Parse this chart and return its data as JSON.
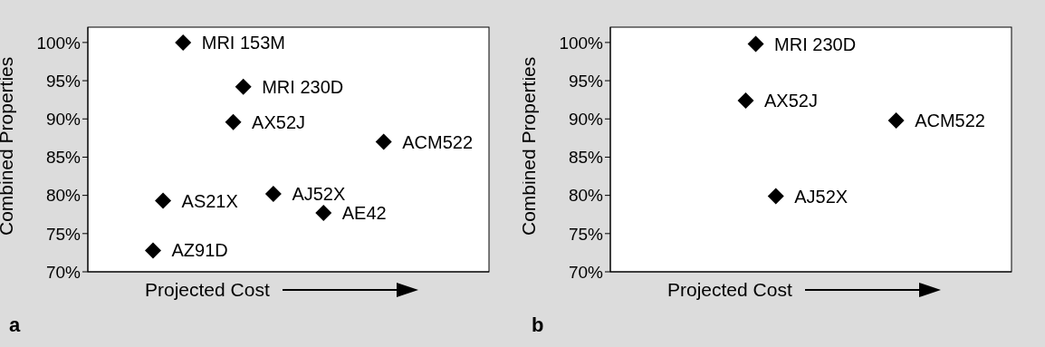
{
  "chart_data": [
    {
      "type": "scatter",
      "xlabel": "Projected Cost",
      "ylabel": "Combined Properties",
      "marker": "diamond",
      "tick_labels": "y",
      "legend": false,
      "categories": [
        null,
        null,
        null,
        null,
        null,
        null,
        null,
        null,
        null,
        null,
        null,
        null,
        null,
        null,
        null,
        null,
        null,
        null,
        null,
        null,
        null,
        null,
        null,
        null,
        null,
        null,
        null,
        null,
        null,
        null,
        null,
        null,
        null,
        null,
        null,
        null,
        null,
        null,
        null,
        null
      ],
      "ylim": [
        70,
        102
      ],
      "yticks": [
        {
          "value": 70,
          "label": "70%"
        },
        {
          "value": 75,
          "label": "75%"
        },
        {
          "value": 80,
          "label": "80%"
        },
        {
          "value": 85,
          "label": "85%"
        },
        {
          "value": 90,
          "label": "90%"
        },
        {
          "value": 95,
          "label": "95%"
        },
        {
          "value": 100,
          "label": "100%"
        }
      ],
      "series": [
        {
          "name": "MRI 153M",
          "color": "#000000",
          "values": [
            null,
            null,
            null,
            null,
            null,
            null,
            null,
            null,
            null,
            100,
            null,
            null,
            null,
            null,
            null,
            null,
            null,
            null,
            null,
            null,
            null,
            null,
            null,
            null,
            null,
            null,
            null,
            null,
            null,
            null,
            null,
            null,
            null,
            null,
            null,
            null,
            null,
            null,
            null,
            null
          ]
        },
        {
          "name": "MRI 230D",
          "color": "#000000",
          "values": [
            null,
            null,
            null,
            null,
            null,
            null,
            null,
            null,
            null,
            null,
            null,
            null,
            null,
            null,
            null,
            94.2,
            null,
            null,
            null,
            null,
            null,
            null,
            null,
            null,
            null,
            null,
            null,
            null,
            null,
            null,
            null,
            null,
            null,
            null,
            null,
            null,
            null,
            null,
            null,
            null
          ]
        },
        {
          "name": "AX52J",
          "color": "#000000",
          "values": [
            null,
            null,
            null,
            null,
            null,
            null,
            null,
            null,
            null,
            null,
            null,
            null,
            null,
            null,
            89.6,
            null,
            null,
            null,
            null,
            null,
            null,
            null,
            null,
            null,
            null,
            null,
            null,
            null,
            null,
            null,
            null,
            null,
            null,
            null,
            null,
            null,
            null,
            null,
            null,
            null
          ]
        },
        {
          "name": "ACM522",
          "color": "#000000",
          "values": [
            null,
            null,
            null,
            null,
            null,
            null,
            null,
            null,
            null,
            null,
            null,
            null,
            null,
            null,
            null,
            null,
            null,
            null,
            null,
            null,
            null,
            null,
            null,
            null,
            null,
            null,
            null,
            null,
            null,
            87,
            null,
            null,
            null,
            null,
            null,
            null,
            null,
            null,
            null,
            null
          ]
        },
        {
          "name": "AS21X",
          "color": "#000000",
          "values": [
            null,
            null,
            null,
            null,
            null,
            null,
            null,
            79.3,
            null,
            null,
            null,
            null,
            null,
            null,
            null,
            null,
            null,
            null,
            null,
            null,
            null,
            null,
            null,
            null,
            null,
            null,
            null,
            null,
            null,
            null,
            null,
            null,
            null,
            null,
            null,
            null,
            null,
            null,
            null,
            null
          ]
        },
        {
          "name": "AJ52X",
          "color": "#000000",
          "values": [
            null,
            null,
            null,
            null,
            null,
            null,
            null,
            null,
            null,
            null,
            null,
            null,
            null,
            null,
            null,
            null,
            null,
            null,
            80.2,
            null,
            null,
            null,
            null,
            null,
            null,
            null,
            null,
            null,
            null,
            null,
            null,
            null,
            null,
            null,
            null,
            null,
            null,
            null,
            null,
            null
          ]
        },
        {
          "name": "AE42",
          "color": "#000000",
          "values": [
            null,
            null,
            null,
            null,
            null,
            null,
            null,
            null,
            null,
            null,
            null,
            null,
            null,
            null,
            null,
            null,
            null,
            null,
            null,
            null,
            null,
            null,
            null,
            77.7,
            null,
            null,
            null,
            null,
            null,
            null,
            null,
            null,
            null,
            null,
            null,
            null,
            null,
            null,
            null,
            null
          ]
        },
        {
          "name": "AZ91D",
          "color": "#000000",
          "values": [
            null,
            null,
            null,
            null,
            null,
            null,
            72.8,
            null,
            null,
            null,
            null,
            null,
            null,
            null,
            null,
            null,
            null,
            null,
            null,
            null,
            null,
            null,
            null,
            null,
            null,
            null,
            null,
            null,
            null,
            null,
            null,
            null,
            null,
            null,
            null,
            null,
            null,
            null,
            null,
            null
          ]
        }
      ],
      "annotations": [
        "a"
      ]
    },
    {
      "type": "scatter",
      "xlabel": "Projected Cost",
      "ylabel": "Combined Properties",
      "marker": "diamond",
      "tick_labels": "y",
      "legend": false,
      "categories": [
        null,
        null,
        null,
        null,
        null,
        null,
        null,
        null,
        null,
        null,
        null,
        null,
        null,
        null,
        null,
        null,
        null,
        null,
        null,
        null,
        null,
        null,
        null,
        null,
        null,
        null,
        null,
        null,
        null,
        null,
        null,
        null,
        null,
        null,
        null,
        null,
        null,
        null,
        null,
        null
      ],
      "ylim": [
        70,
        102
      ],
      "yticks": [
        {
          "value": 70,
          "label": "70%"
        },
        {
          "value": 75,
          "label": "75%"
        },
        {
          "value": 80,
          "label": "80%"
        },
        {
          "value": 85,
          "label": "85%"
        },
        {
          "value": 90,
          "label": "90%"
        },
        {
          "value": 95,
          "label": "95%"
        },
        {
          "value": 100,
          "label": "100%"
        }
      ],
      "series": [
        {
          "name": "MRI 230D",
          "color": "#000000",
          "values": [
            null,
            null,
            null,
            null,
            null,
            null,
            null,
            null,
            null,
            null,
            null,
            null,
            null,
            null,
            99.8,
            null,
            null,
            null,
            null,
            null,
            null,
            null,
            null,
            null,
            null,
            null,
            null,
            null,
            null,
            null,
            null,
            null,
            null,
            null,
            null,
            null,
            null,
            null,
            null,
            null
          ]
        },
        {
          "name": "AX52J",
          "color": "#000000",
          "values": [
            null,
            null,
            null,
            null,
            null,
            null,
            null,
            null,
            null,
            null,
            null,
            null,
            null,
            92.4,
            null,
            null,
            null,
            null,
            null,
            null,
            null,
            null,
            null,
            null,
            null,
            null,
            null,
            null,
            null,
            null,
            null,
            null,
            null,
            null,
            null,
            null,
            null,
            null,
            null,
            null
          ]
        },
        {
          "name": "ACM522",
          "color": "#000000",
          "values": [
            null,
            null,
            null,
            null,
            null,
            null,
            null,
            null,
            null,
            null,
            null,
            null,
            null,
            null,
            null,
            null,
            null,
            null,
            null,
            null,
            null,
            null,
            null,
            null,
            null,
            null,
            null,
            null,
            89.8,
            null,
            null,
            null,
            null,
            null,
            null,
            null,
            null,
            null,
            null,
            null
          ]
        },
        {
          "name": "AJ52X",
          "color": "#000000",
          "values": [
            null,
            null,
            null,
            null,
            null,
            null,
            null,
            null,
            null,
            null,
            null,
            null,
            null,
            null,
            null,
            null,
            79.9,
            null,
            null,
            null,
            null,
            null,
            null,
            null,
            null,
            null,
            null,
            null,
            null,
            null,
            null,
            null,
            null,
            null,
            null,
            null,
            null,
            null,
            null,
            null
          ]
        }
      ],
      "annotations": [
        "b"
      ]
    }
  ]
}
